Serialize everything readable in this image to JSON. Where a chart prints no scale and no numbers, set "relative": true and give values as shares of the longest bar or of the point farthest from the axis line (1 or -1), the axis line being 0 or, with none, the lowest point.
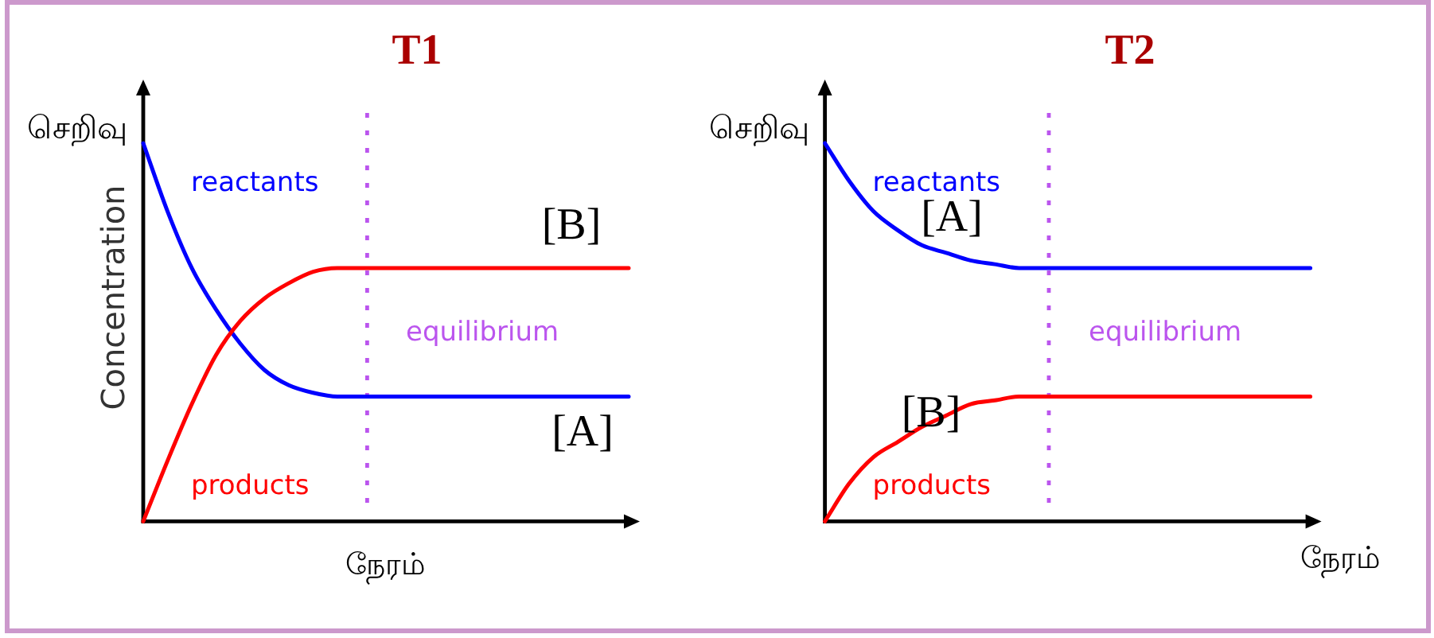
{
  "chart_data": [
    {
      "type": "line",
      "title": "T1",
      "ylabel": "செறிவு",
      "xlabel": "நேரம்",
      "relative": true,
      "categories": [
        null,
        null,
        null,
        null,
        null,
        null,
        null,
        null,
        null,
        null,
        null,
        null,
        null,
        null,
        null,
        null,
        null,
        null,
        null,
        null,
        null
      ],
      "series": [
        {
          "name": "reactants",
          "color": "#0000ff",
          "values": [
            1.0,
            0.82,
            0.67,
            0.56,
            0.47,
            0.4,
            0.36,
            0.34,
            0.33,
            0.33,
            0.33,
            0.33,
            0.33,
            0.33,
            0.33,
            0.33,
            0.33,
            0.33,
            0.33,
            0.33,
            0.33
          ]
        },
        {
          "name": "products",
          "color": "#ff0000",
          "values": [
            0,
            0.16,
            0.31,
            0.44,
            0.53,
            0.59,
            0.63,
            0.66,
            0.67,
            0.67,
            0.67,
            0.67,
            0.67,
            0.67,
            0.67,
            0.67,
            0.67,
            0.67,
            0.67,
            0.67,
            0.67
          ]
        }
      ],
      "annotations": [
        "Concentration",
        "[B]",
        "[A]",
        "equilibrium"
      ]
    },
    {
      "type": "line",
      "title": "T2",
      "ylabel": "செறிவு",
      "xlabel": "நேரம்",
      "relative": true,
      "categories": [
        null,
        null,
        null,
        null,
        null,
        null,
        null,
        null,
        null,
        null,
        null,
        null,
        null,
        null,
        null,
        null,
        null,
        null,
        null,
        null,
        null
      ],
      "series": [
        {
          "name": "reactants",
          "color": "#0000ff",
          "values": [
            1.0,
            0.9,
            0.82,
            0.77,
            0.73,
            0.71,
            0.69,
            0.68,
            0.67,
            0.67,
            0.67,
            0.67,
            0.67,
            0.67,
            0.67,
            0.67,
            0.67,
            0.67,
            0.67,
            0.67,
            0.67
          ]
        },
        {
          "name": "products",
          "color": "#ff0000",
          "values": [
            0,
            0.1,
            0.17,
            0.21,
            0.25,
            0.28,
            0.31,
            0.32,
            0.33,
            0.33,
            0.33,
            0.33,
            0.33,
            0.33,
            0.33,
            0.33,
            0.33,
            0.33,
            0.33,
            0.33,
            0.33
          ]
        }
      ],
      "annotations": [
        "[A]",
        "[B]",
        "equilibrium"
      ]
    }
  ]
}
